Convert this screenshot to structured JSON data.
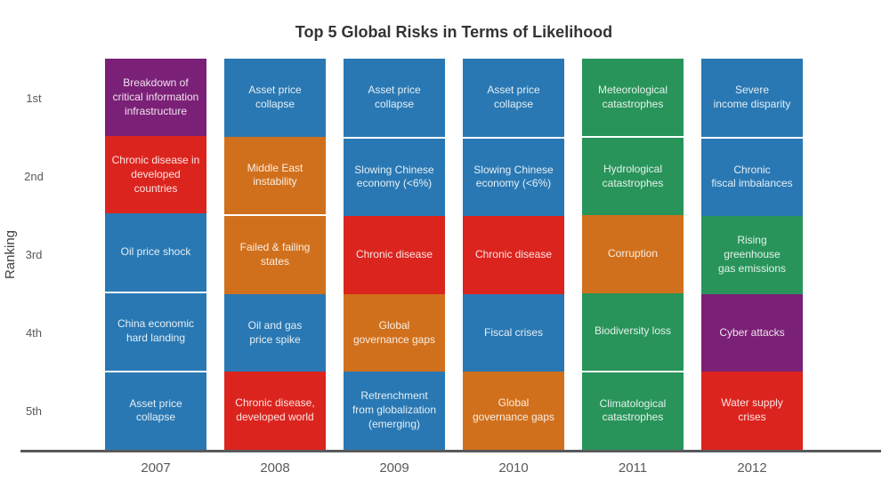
{
  "chart_data": {
    "type": "table",
    "title": "Top 5 Global Risks in Terms of Likelihood",
    "xlabel": "",
    "ylabel": "Ranking",
    "rank_labels": [
      "1st",
      "2nd",
      "3rd",
      "4th",
      "5th"
    ],
    "categories": [
      "2007",
      "2008",
      "2009",
      "2010",
      "2011",
      "2012"
    ],
    "palette": {
      "blue": "#2978b3",
      "red": "#dc241e",
      "orange": "#d1701c",
      "green": "#28945a",
      "purple": "#7b2077"
    },
    "separator_rule": "white line between vertically adjacent same-color cells",
    "legend": "none",
    "grid": "off",
    "years": [
      {
        "year": "2007",
        "cells": [
          {
            "rank": "1st",
            "label": "Breakdown of\ncritical information\ninfrastructure",
            "color": "purple"
          },
          {
            "rank": "2nd",
            "label": "Chronic disease in\ndeveloped countries",
            "color": "red"
          },
          {
            "rank": "3rd",
            "label": "Oil price shock",
            "color": "blue"
          },
          {
            "rank": "4th",
            "label": "China economic\nhard landing",
            "color": "blue"
          },
          {
            "rank": "5th",
            "label": "Asset price collapse",
            "color": "blue"
          }
        ]
      },
      {
        "year": "2008",
        "cells": [
          {
            "rank": "1st",
            "label": "Asset price collapse",
            "color": "blue"
          },
          {
            "rank": "2nd",
            "label": "Middle East\ninstability",
            "color": "orange"
          },
          {
            "rank": "3rd",
            "label": "Failed & failing\nstates",
            "color": "orange"
          },
          {
            "rank": "4th",
            "label": "Oil and gas\nprice spike",
            "color": "blue"
          },
          {
            "rank": "5th",
            "label": "Chronic disease,\ndeveloped world",
            "color": "red"
          }
        ]
      },
      {
        "year": "2009",
        "cells": [
          {
            "rank": "1st",
            "label": "Asset price collapse",
            "color": "blue"
          },
          {
            "rank": "2nd",
            "label": "Slowing Chinese\neconomy (<6%)",
            "color": "blue"
          },
          {
            "rank": "3rd",
            "label": "Chronic disease",
            "color": "red"
          },
          {
            "rank": "4th",
            "label": "Global\ngovernance gaps",
            "color": "orange"
          },
          {
            "rank": "5th",
            "label": "Retrenchment\nfrom globalization\n(emerging)",
            "color": "blue"
          }
        ]
      },
      {
        "year": "2010",
        "cells": [
          {
            "rank": "1st",
            "label": "Asset price collapse",
            "color": "blue"
          },
          {
            "rank": "2nd",
            "label": "Slowing Chinese\neconomy (<6%)",
            "color": "blue"
          },
          {
            "rank": "3rd",
            "label": "Chronic disease",
            "color": "red"
          },
          {
            "rank": "4th",
            "label": "Fiscal crises",
            "color": "blue"
          },
          {
            "rank": "5th",
            "label": "Global\ngovernance gaps",
            "color": "orange"
          }
        ]
      },
      {
        "year": "2011",
        "cells": [
          {
            "rank": "1st",
            "label": "Meteorological\ncatastrophes",
            "color": "green"
          },
          {
            "rank": "2nd",
            "label": "Hydrological\ncatastrophes",
            "color": "green"
          },
          {
            "rank": "3rd",
            "label": "Corruption",
            "color": "orange"
          },
          {
            "rank": "4th",
            "label": "Biodiversity loss",
            "color": "green"
          },
          {
            "rank": "5th",
            "label": "Climatological\ncatastrophes",
            "color": "green"
          }
        ]
      },
      {
        "year": "2012",
        "cells": [
          {
            "rank": "1st",
            "label": "Severe\nincome disparity",
            "color": "blue"
          },
          {
            "rank": "2nd",
            "label": "Chronic\nfiscal imbalances",
            "color": "blue"
          },
          {
            "rank": "3rd",
            "label": "Rising greenhouse\ngas emissions",
            "color": "green"
          },
          {
            "rank": "4th",
            "label": "Cyber attacks",
            "color": "purple"
          },
          {
            "rank": "5th",
            "label": "Water supply\ncrises",
            "color": "red"
          }
        ]
      }
    ]
  }
}
